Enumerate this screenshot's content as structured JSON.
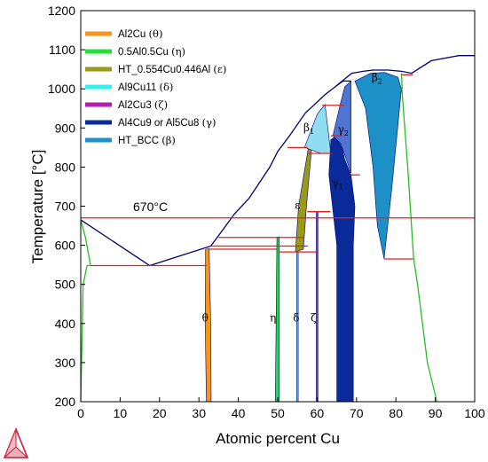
{
  "chart_data": {
    "type": "phase-diagram",
    "xlabel": "Atomic percent Cu",
    "ylabel": "Temperature [°C]",
    "xlim": [
      0,
      100
    ],
    "ylim": [
      200,
      1200
    ],
    "xticks": [
      "0",
      "10",
      "20",
      "30",
      "40",
      "50",
      "60",
      "70",
      "80",
      "90",
      "100"
    ],
    "yticks": [
      "200",
      "300",
      "400",
      "500",
      "600",
      "700",
      "800",
      "900",
      "1000",
      "1100",
      "1200"
    ],
    "grid": false,
    "legend_position": "top-left",
    "legend": [
      {
        "label": "Al2Cu",
        "sym": "(θ)",
        "color": "#F7941D"
      },
      {
        "label": "0.5Al0.5Cu",
        "sym": "(η)",
        "color": "#22E03A"
      },
      {
        "label": "HT_0.554Cu0.446Al",
        "sym": "(ε)",
        "color": "#9A9A1A"
      },
      {
        "label": "Al9Cu11",
        "sym": "(δ)",
        "color": "#33F0F0"
      },
      {
        "label": "Al2Cu3",
        "sym": "(ζ)",
        "color": "#B21FB2"
      },
      {
        "label": "Al4Cu9 or Al5Cu8",
        "sym": "(γ)",
        "color": "#0A2A9A"
      },
      {
        "label": "HT_BCC",
        "sym": "(β)",
        "color": "#1E90C8"
      }
    ],
    "annotation": {
      "text": "670°C",
      "temperature": 670
    },
    "phase_labels": [
      {
        "text": "θ",
        "x": 31.6,
        "y": 405
      },
      {
        "text": "η",
        "x": 48.8,
        "y": 405
      },
      {
        "text": "δ",
        "x": 54.7,
        "y": 405
      },
      {
        "text": "ζ",
        "x": 59.1,
        "y": 405
      },
      {
        "text": "ε",
        "x": 55.0,
        "y": 693
      },
      {
        "text": "γ",
        "sub": "1",
        "x": 65.2,
        "y": 750
      },
      {
        "text": "γ",
        "sub": "2",
        "x": 66.6,
        "y": 887
      },
      {
        "text": "β",
        "sub": "1",
        "x": 57.9,
        "y": 892
      },
      {
        "text": "β",
        "sub": "2",
        "x": 75.2,
        "y": 1020
      }
    ],
    "phases": [
      {
        "name": "θ",
        "color": "#F7941D",
        "outline": [
          [
            31.9,
            200
          ],
          [
            31.6,
            400
          ],
          [
            31.7,
            590
          ],
          [
            32.6,
            591
          ],
          [
            33.0,
            400
          ],
          [
            33.1,
            200
          ]
        ]
      },
      {
        "name": "η",
        "color": "#22E03A",
        "outline": [
          [
            49.4,
            200
          ],
          [
            49.6,
            400
          ],
          [
            49.8,
            620
          ],
          [
            50.4,
            622
          ],
          [
            50.4,
            200
          ]
        ]
      },
      {
        "name": "δ",
        "color": "#33F0F0",
        "outline": [
          [
            54.8,
            200
          ],
          [
            54.8,
            583
          ],
          [
            55.2,
            583
          ],
          [
            55.2,
            200
          ]
        ]
      },
      {
        "name": "ζ",
        "color": "#B21FB2",
        "outline": [
          [
            59.8,
            200
          ],
          [
            59.8,
            686
          ],
          [
            60.2,
            686
          ],
          [
            60.2,
            200
          ]
        ]
      },
      {
        "name": "ε",
        "color": "#9A9A1A",
        "outline": [
          [
            54.5,
            583
          ],
          [
            55.3,
            700
          ],
          [
            57.8,
            850
          ],
          [
            58.6,
            848
          ],
          [
            57.3,
            700
          ],
          [
            56.5,
            590
          ]
        ]
      },
      {
        "name": "β1",
        "color": "#8FDDF0",
        "outline": [
          [
            56.8,
            850
          ],
          [
            60.0,
            935
          ],
          [
            62.0,
            960
          ],
          [
            63.5,
            835
          ],
          [
            61.0,
            835
          ]
        ]
      },
      {
        "name": "γ1",
        "color": "#0A2A9A",
        "outline": [
          [
            63.0,
            780
          ],
          [
            63.5,
            870
          ],
          [
            64.9,
            880
          ],
          [
            66.4,
            845
          ],
          [
            67.0,
            820
          ],
          [
            68.6,
            780
          ],
          [
            69.6,
            700
          ],
          [
            69.2,
            600
          ],
          [
            69.2,
            200
          ],
          [
            65.0,
            200
          ],
          [
            65.0,
            600
          ],
          [
            63.9,
            700
          ]
        ]
      },
      {
        "name": "γ2",
        "color": "#4F74D2",
        "outline": [
          [
            64.0,
            880
          ],
          [
            65.8,
            958
          ],
          [
            67.0,
            1005
          ],
          [
            68.6,
            1020
          ],
          [
            68.6,
            785
          ],
          [
            66.0,
            860
          ]
        ]
      },
      {
        "name": "β2",
        "color": "#1E90C8",
        "outline": [
          [
            69.6,
            1020
          ],
          [
            73.6,
            1040
          ],
          [
            77.1,
            1042
          ],
          [
            80.5,
            1030
          ],
          [
            81.4,
            1000
          ],
          [
            79.0,
            750
          ],
          [
            77.0,
            565
          ],
          [
            75.3,
            650
          ],
          [
            74.2,
            800
          ],
          [
            72.3,
            950
          ]
        ]
      }
    ],
    "boundaries": [
      {
        "color": "#00006E",
        "points": [
          [
            0,
            665
          ],
          [
            17.5,
            548
          ],
          [
            33.0,
            598
          ],
          [
            35.0,
            625
          ],
          [
            39.0,
            680
          ],
          [
            42.7,
            720
          ],
          [
            48.0,
            800
          ],
          [
            50.0,
            840
          ],
          [
            53.0,
            880
          ],
          [
            57.0,
            938
          ],
          [
            62.0,
            985
          ],
          [
            64.8,
            1007
          ],
          [
            66.6,
            1022
          ],
          [
            68.8,
            1040
          ],
          [
            71.7,
            1045
          ],
          [
            74.2,
            1048
          ],
          [
            78.0,
            1048
          ],
          [
            81.4,
            1045
          ],
          [
            84.0,
            1040
          ],
          [
            89.0,
            1072
          ],
          [
            96.0,
            1085
          ],
          [
            100,
            1085
          ]
        ]
      },
      {
        "color": "#00006E",
        "points": [
          [
            64.8,
            1007
          ],
          [
            66.6,
            1020
          ],
          [
            68.6,
            1020
          ]
        ]
      },
      {
        "color": "#22C022",
        "points": [
          [
            0,
            200
          ],
          [
            0.6,
            500
          ],
          [
            1.6,
            548
          ],
          [
            2.5,
            548
          ]
        ]
      },
      {
        "color": "#22C022",
        "points": [
          [
            0,
            665
          ],
          [
            1.2,
            620
          ],
          [
            2.5,
            548
          ]
        ]
      },
      {
        "color": "#22C022",
        "points": [
          [
            81.5,
            1000
          ],
          [
            83.0,
            800
          ],
          [
            84.5,
            565
          ],
          [
            85.5,
            500
          ],
          [
            88.0,
            300
          ],
          [
            90.4,
            200
          ]
        ]
      },
      {
        "color": "#22C022",
        "points": [
          [
            81.4,
            1040
          ],
          [
            81.6,
            1000
          ]
        ]
      }
    ],
    "isotherms": [
      {
        "t": 670,
        "x": [
          0,
          100
        ],
        "color": "#E0201E"
      },
      {
        "t": 548,
        "x": [
          2.5,
          32.0
        ],
        "color": "#E0201E"
      },
      {
        "t": 590,
        "x": [
          32.6,
          49.8
        ],
        "color": "#E0201E"
      },
      {
        "t": 598,
        "x": [
          33.0,
          57.7
        ],
        "color": "#E0201E"
      },
      {
        "t": 620,
        "x": [
          35.0,
          56.8
        ],
        "color": "#E0201E"
      },
      {
        "t": 583,
        "x": [
          50.4,
          59.8
        ],
        "color": "#E0201E"
      },
      {
        "t": 686,
        "x": [
          57.5,
          63.4
        ],
        "color": "#E0201E"
      },
      {
        "t": 850,
        "x": [
          52.5,
          57.6
        ],
        "color": "#E0201E"
      },
      {
        "t": 835,
        "x": [
          57.6,
          63.8
        ],
        "color": "#E0201E"
      },
      {
        "t": 880,
        "x": [
          63.5,
          66.4
        ],
        "color": "#E0201E"
      },
      {
        "t": 958,
        "x": [
          61.3,
          66.7
        ],
        "color": "#E0201E"
      },
      {
        "t": 1036,
        "x": [
          81.4,
          84.3
        ],
        "color": "#E0201E"
      },
      {
        "t": 780,
        "x": [
          68.6,
          70.9
        ],
        "color": "#E0201E"
      },
      {
        "t": 565,
        "x": [
          77.0,
          84.3
        ],
        "color": "#E0201E"
      }
    ]
  }
}
